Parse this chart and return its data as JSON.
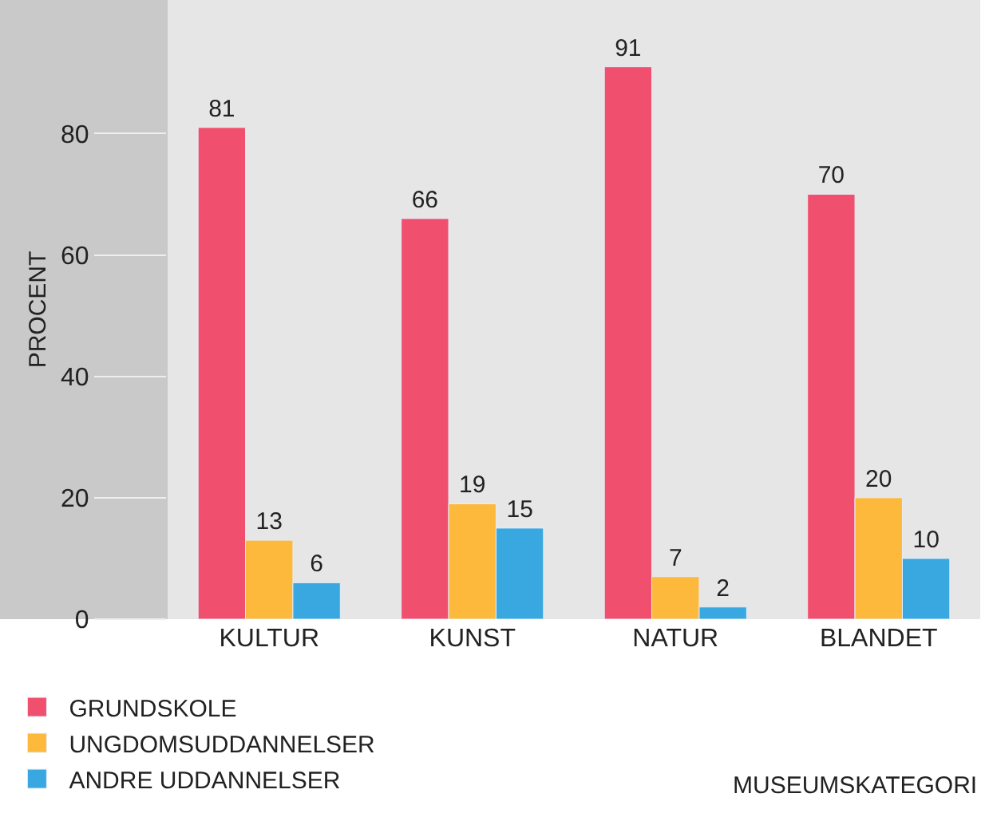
{
  "chart_data": {
    "type": "bar",
    "ylabel": "PROCENT",
    "xlabel": "MUSEUMSKATEGORI",
    "categories": [
      "KULTUR",
      "KUNST",
      "NATUR",
      "BLANDET"
    ],
    "series": [
      {
        "name": "GRUNDSKOLE",
        "color": "#f0506e",
        "values": [
          81,
          66,
          91,
          70
        ]
      },
      {
        "name": "UNGDOMSUDDANNELSER",
        "color": "#fdb93c",
        "values": [
          13,
          19,
          7,
          20
        ]
      },
      {
        "name": "ANDRE UDDANNELSER",
        "color": "#3aa8e0",
        "values": [
          6,
          15,
          2,
          10
        ]
      }
    ],
    "ylim": [
      0,
      102
    ],
    "yticks": [
      0,
      20,
      40,
      60,
      80
    ],
    "data_labels": true,
    "legend": "bottom left",
    "grid": false
  }
}
